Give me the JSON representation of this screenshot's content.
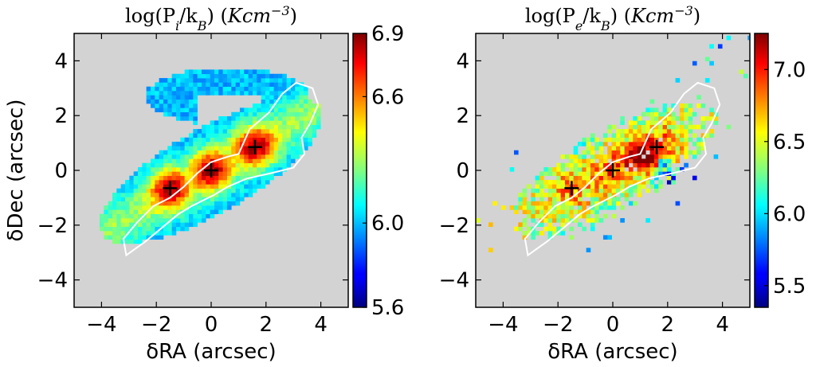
{
  "chart_data": [
    {
      "type": "heatmap",
      "title": {
        "a": "log(P",
        "sub": "i",
        "b": "/k",
        "sub2": "B",
        "c": ") (",
        "unit": "Kcm",
        "sup": "−3",
        "d": ")"
      },
      "xlabel": "δRA (arcsec)",
      "ylabel": "δDec (arcsec)",
      "xlim": [
        -5,
        5
      ],
      "ylim": [
        -5,
        5
      ],
      "xticks": [
        "−4",
        "−2",
        "0",
        "2",
        "4"
      ],
      "xtick_values": [
        -4,
        -2,
        0,
        2,
        4
      ],
      "yticks": [
        "−4",
        "−2",
        "0",
        "2",
        "4"
      ],
      "ytick_values": [
        -4,
        -2,
        0,
        2,
        4
      ],
      "colorbar": {
        "min": 5.6,
        "max": 6.9,
        "ticks": [
          "6.9",
          "6.6",
          "6.0",
          "5.6"
        ],
        "tick_values": [
          6.9,
          6.6,
          6.0,
          5.6
        ]
      },
      "markers": [
        {
          "x": -1.5,
          "y": -0.65
        },
        {
          "x": 0.0,
          "y": 0.0
        },
        {
          "x": 1.6,
          "y": 0.85
        }
      ],
      "contour": [
        [
          -3.1,
          -3.1
        ],
        [
          -3.2,
          -2.5
        ],
        [
          -2.7,
          -1.9
        ],
        [
          -2.1,
          -1.3
        ],
        [
          -1.5,
          -1.0
        ],
        [
          -1.0,
          -0.6
        ],
        [
          -0.5,
          -0.1
        ],
        [
          0.0,
          0.3
        ],
        [
          0.6,
          0.5
        ],
        [
          1.0,
          0.6
        ],
        [
          1.4,
          1.5
        ],
        [
          2.1,
          2.1
        ],
        [
          2.6,
          2.8
        ],
        [
          3.1,
          3.2
        ],
        [
          3.7,
          3.0
        ],
        [
          3.9,
          2.4
        ],
        [
          3.6,
          1.7
        ],
        [
          3.3,
          1.2
        ],
        [
          3.4,
          0.6
        ],
        [
          3.0,
          0.1
        ],
        [
          2.2,
          -0.1
        ],
        [
          1.3,
          -0.3
        ],
        [
          0.6,
          -0.6
        ],
        [
          0.1,
          -0.9
        ],
        [
          -0.7,
          -1.3
        ],
        [
          -1.2,
          -1.6
        ],
        [
          -1.8,
          -2.1
        ],
        [
          -2.4,
          -2.6
        ],
        [
          -3.1,
          -3.1
        ]
      ]
    },
    {
      "type": "heatmap",
      "title": {
        "a": "log(P",
        "sub": "e",
        "b": "/k",
        "sub2": "B",
        "c": ") (",
        "unit": "Kcm",
        "sup": "−3",
        "d": ")"
      },
      "xlabel": "δRA (arcsec)",
      "ylabel": "",
      "xlim": [
        -5,
        5
      ],
      "ylim": [
        -5,
        5
      ],
      "xticks": [
        "−4",
        "−2",
        "0",
        "2",
        "4"
      ],
      "xtick_values": [
        -4,
        -2,
        0,
        2,
        4
      ],
      "yticks": [
        "−4",
        "−2",
        "0",
        "2",
        "4"
      ],
      "ytick_values": [
        -4,
        -2,
        0,
        2,
        4
      ],
      "colorbar": {
        "min": 5.35,
        "max": 7.25,
        "ticks": [
          "7.0",
          "6.5",
          "6.0",
          "5.5"
        ],
        "tick_values": [
          7.0,
          6.5,
          6.0,
          5.5
        ]
      },
      "markers": [
        {
          "x": -1.5,
          "y": -0.65
        },
        {
          "x": 0.0,
          "y": 0.0
        },
        {
          "x": 1.6,
          "y": 0.85
        }
      ],
      "contour": [
        [
          -3.1,
          -3.1
        ],
        [
          -3.2,
          -2.5
        ],
        [
          -2.7,
          -1.9
        ],
        [
          -2.1,
          -1.3
        ],
        [
          -1.5,
          -1.0
        ],
        [
          -1.0,
          -0.6
        ],
        [
          -0.5,
          -0.1
        ],
        [
          0.0,
          0.3
        ],
        [
          0.6,
          0.5
        ],
        [
          1.0,
          0.6
        ],
        [
          1.4,
          1.5
        ],
        [
          2.1,
          2.1
        ],
        [
          2.6,
          2.8
        ],
        [
          3.1,
          3.2
        ],
        [
          3.7,
          3.0
        ],
        [
          3.9,
          2.4
        ],
        [
          3.6,
          1.7
        ],
        [
          3.3,
          1.2
        ],
        [
          3.4,
          0.6
        ],
        [
          3.0,
          0.1
        ],
        [
          2.2,
          -0.1
        ],
        [
          1.3,
          -0.3
        ],
        [
          0.6,
          -0.6
        ],
        [
          0.1,
          -0.9
        ],
        [
          -0.7,
          -1.3
        ],
        [
          -1.2,
          -1.6
        ],
        [
          -1.8,
          -2.1
        ],
        [
          -2.4,
          -2.6
        ],
        [
          -3.1,
          -3.1
        ]
      ]
    }
  ]
}
